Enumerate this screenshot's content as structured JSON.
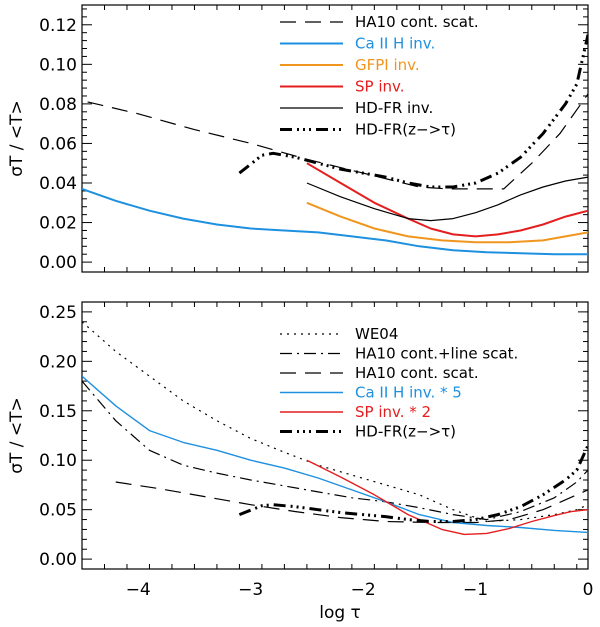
{
  "figure": {
    "xlabel": "log τ",
    "x_ticks": [
      -4,
      -3,
      -2,
      -1,
      0
    ],
    "x_tick_labels": [
      "−4",
      "−3",
      "−2",
      "−1",
      "0"
    ]
  },
  "chart_data": [
    {
      "type": "line",
      "panel": "top",
      "ylabel": "σT / <T>",
      "xlim": [
        -4.5,
        0
      ],
      "ylim": [
        -0.005,
        0.13
      ],
      "y_ticks": [
        0.0,
        0.02,
        0.04,
        0.06,
        0.08,
        0.1,
        0.12
      ],
      "y_tick_labels": [
        "0.00",
        "0.02",
        "0.04",
        "0.06",
        "0.08",
        "0.10",
        "0.12"
      ],
      "legend_position": "top-right",
      "series": [
        {
          "name": "HA10 cont. scat.",
          "color": "#000000",
          "style": "dashed",
          "width": 1.2,
          "x": [
            -4.45,
            -4.0,
            -3.5,
            -3.0,
            -2.5,
            -2.0,
            -1.5,
            -1.25,
            -1.0,
            -0.75,
            -0.5,
            -0.25,
            0.0
          ],
          "y": [
            0.081,
            0.075,
            0.067,
            0.06,
            0.052,
            0.045,
            0.038,
            0.037,
            0.037,
            0.037,
            0.05,
            0.065,
            0.085
          ]
        },
        {
          "name": "Ca II H inv.",
          "color": "#1e90e0",
          "style": "solid",
          "width": 2,
          "x": [
            -4.5,
            -4.2,
            -3.9,
            -3.6,
            -3.3,
            -3.0,
            -2.7,
            -2.4,
            -2.1,
            -1.8,
            -1.5,
            -1.2,
            -0.9,
            -0.6,
            -0.3,
            0.0
          ],
          "y": [
            0.037,
            0.031,
            0.026,
            0.022,
            0.019,
            0.017,
            0.016,
            0.015,
            0.013,
            0.011,
            0.008,
            0.006,
            0.005,
            0.0045,
            0.004,
            0.004
          ]
        },
        {
          "name": "GFPI inv.",
          "color": "#f0961e",
          "style": "solid",
          "width": 2,
          "x": [
            -2.5,
            -2.2,
            -1.9,
            -1.6,
            -1.3,
            -1.0,
            -0.7,
            -0.4,
            -0.2,
            0.0
          ],
          "y": [
            0.03,
            0.023,
            0.017,
            0.013,
            0.011,
            0.01,
            0.01,
            0.011,
            0.013,
            0.015
          ]
        },
        {
          "name": "SP inv.",
          "color": "#e41e1e",
          "style": "solid",
          "width": 2,
          "x": [
            -2.5,
            -2.2,
            -1.9,
            -1.6,
            -1.4,
            -1.2,
            -1.0,
            -0.8,
            -0.6,
            -0.4,
            -0.2,
            0.0
          ],
          "y": [
            0.05,
            0.04,
            0.03,
            0.022,
            0.017,
            0.014,
            0.013,
            0.014,
            0.016,
            0.019,
            0.023,
            0.026
          ]
        },
        {
          "name": "HD-FR inv.",
          "color": "#000000",
          "style": "solid",
          "width": 1.2,
          "x": [
            -2.5,
            -2.2,
            -1.9,
            -1.6,
            -1.4,
            -1.2,
            -1.0,
            -0.8,
            -0.6,
            -0.4,
            -0.2,
            0.0
          ],
          "y": [
            0.04,
            0.033,
            0.027,
            0.022,
            0.021,
            0.022,
            0.025,
            0.029,
            0.034,
            0.038,
            0.041,
            0.043
          ]
        },
        {
          "name": "HD-FR(z−>τ)",
          "color": "#000000",
          "style": "dashdotdot",
          "width": 3,
          "x": [
            -3.1,
            -2.9,
            -2.8,
            -2.6,
            -2.4,
            -2.2,
            -2.0,
            -1.8,
            -1.6,
            -1.4,
            -1.2,
            -1.0,
            -0.8,
            -0.6,
            -0.4,
            -0.2,
            -0.1,
            0.0
          ],
          "y": [
            0.045,
            0.054,
            0.055,
            0.053,
            0.05,
            0.047,
            0.045,
            0.043,
            0.04,
            0.038,
            0.038,
            0.04,
            0.045,
            0.053,
            0.065,
            0.08,
            0.09,
            0.115
          ]
        }
      ]
    },
    {
      "type": "line",
      "panel": "bottom",
      "ylabel": "σT / <T>",
      "xlim": [
        -4.5,
        0
      ],
      "ylim": [
        -0.01,
        0.26
      ],
      "y_ticks": [
        0.0,
        0.05,
        0.1,
        0.15,
        0.2,
        0.25
      ],
      "y_tick_labels": [
        "0.00",
        "0.05",
        "0.10",
        "0.15",
        "0.20",
        "0.25"
      ],
      "legend_position": "top-right",
      "series": [
        {
          "name": "WE04",
          "color": "#000000",
          "style": "dotted",
          "width": 1.2,
          "x": [
            -4.5,
            -4.2,
            -3.9,
            -3.6,
            -3.3,
            -3.0,
            -2.7,
            -2.4,
            -2.1,
            -1.8,
            -1.5,
            -1.2,
            -0.9,
            -0.6,
            -0.3,
            -0.1,
            0.0
          ],
          "y": [
            0.24,
            0.21,
            0.185,
            0.16,
            0.14,
            0.122,
            0.108,
            0.095,
            0.085,
            0.075,
            0.065,
            0.05,
            0.038,
            0.04,
            0.045,
            0.05,
            0.055
          ]
        },
        {
          "name": "HA10 cont.+line scat.",
          "color": "#000000",
          "style": "dashdot",
          "width": 1.2,
          "x": [
            -4.5,
            -4.2,
            -3.9,
            -3.6,
            -3.3,
            -3.0,
            -2.7,
            -2.4,
            -2.1,
            -1.8,
            -1.5,
            -1.2,
            -0.9,
            -0.6,
            -0.3,
            -0.1,
            0.0
          ],
          "y": [
            0.18,
            0.14,
            0.11,
            0.095,
            0.087,
            0.08,
            0.074,
            0.068,
            0.062,
            0.058,
            0.052,
            0.045,
            0.04,
            0.048,
            0.062,
            0.078,
            0.09
          ]
        },
        {
          "name": "HA10 cont. scat.",
          "color": "#000000",
          "style": "dashed",
          "width": 1.2,
          "x": [
            -4.2,
            -3.8,
            -3.4,
            -3.0,
            -2.6,
            -2.2,
            -1.8,
            -1.4,
            -1.0,
            -0.7,
            -0.4,
            -0.2,
            0.0
          ],
          "y": [
            0.078,
            0.071,
            0.063,
            0.055,
            0.048,
            0.042,
            0.038,
            0.037,
            0.037,
            0.04,
            0.05,
            0.06,
            0.07
          ]
        },
        {
          "name": "Ca II H inv. * 5",
          "color": "#1e90e0",
          "style": "solid",
          "width": 1.4,
          "x": [
            -4.5,
            -4.2,
            -3.9,
            -3.6,
            -3.3,
            -3.0,
            -2.7,
            -2.4,
            -2.1,
            -1.8,
            -1.5,
            -1.2,
            -0.9,
            -0.6,
            -0.3,
            0.0
          ],
          "y": [
            0.185,
            0.155,
            0.13,
            0.118,
            0.11,
            0.1,
            0.092,
            0.082,
            0.07,
            0.058,
            0.045,
            0.037,
            0.034,
            0.032,
            0.029,
            0.027
          ]
        },
        {
          "name": "SP inv. * 2",
          "color": "#e41e1e",
          "style": "solid",
          "width": 1.4,
          "x": [
            -2.5,
            -2.2,
            -1.9,
            -1.6,
            -1.3,
            -1.1,
            -0.9,
            -0.7,
            -0.5,
            -0.3,
            -0.15,
            0.0
          ],
          "y": [
            0.1,
            0.083,
            0.065,
            0.045,
            0.03,
            0.025,
            0.026,
            0.031,
            0.038,
            0.044,
            0.048,
            0.05
          ]
        },
        {
          "name": "HD-FR(z−>τ)",
          "color": "#000000",
          "style": "dashdotdot",
          "width": 3,
          "x": [
            -3.1,
            -2.9,
            -2.8,
            -2.6,
            -2.4,
            -2.2,
            -2.0,
            -1.8,
            -1.6,
            -1.4,
            -1.2,
            -1.0,
            -0.8,
            -0.6,
            -0.4,
            -0.2,
            -0.1,
            0.0
          ],
          "y": [
            0.045,
            0.054,
            0.055,
            0.053,
            0.05,
            0.047,
            0.045,
            0.043,
            0.04,
            0.038,
            0.038,
            0.04,
            0.045,
            0.053,
            0.065,
            0.08,
            0.09,
            0.115
          ]
        }
      ]
    }
  ]
}
